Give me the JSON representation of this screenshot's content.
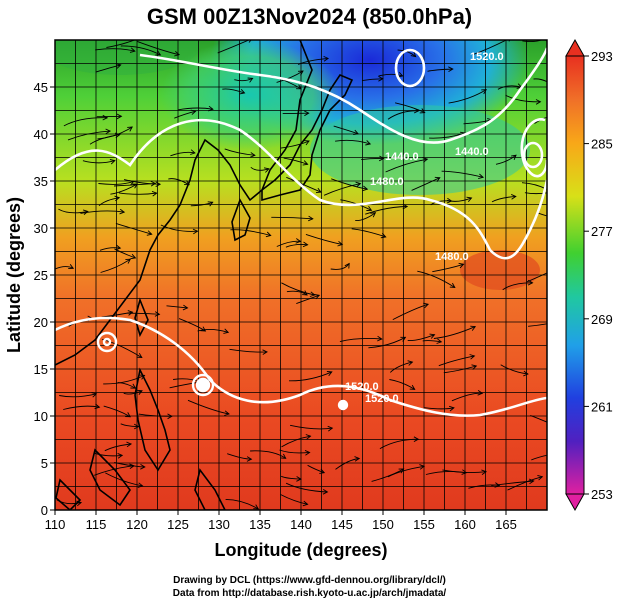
{
  "title": "GSM 00Z13Nov2024 (850.0hPa)",
  "map": {
    "region": "Western North Pacific / East Asia",
    "field": "temperature shading with streamlines and geopotential height contours",
    "x_label": "Longitude (degrees)",
    "y_label": "Latitude  (degrees)",
    "x_ticks": [
      "110",
      "115",
      "120",
      "125",
      "130",
      "135",
      "140",
      "145",
      "150",
      "155",
      "160",
      "165"
    ],
    "y_ticks": [
      "0",
      "5",
      "10",
      "15",
      "20",
      "25",
      "30",
      "35",
      "40",
      "45"
    ],
    "x_range": [
      110,
      170
    ],
    "y_range": [
      0,
      50
    ],
    "contour_labels": [
      "1440.0",
      "1480.0",
      "1440.0",
      "1480.0",
      "1520.0",
      "1520.0",
      "1520.0"
    ],
    "colorbar": {
      "ticks": [
        "293",
        "285",
        "277",
        "269",
        "261",
        "253"
      ],
      "range": [
        253,
        293
      ]
    }
  },
  "credits": {
    "line1": "Drawing by DCL (https://www.gfd-dennou.org/library/dcl/)",
    "line2": "Data from http://database.rish.kyoto-u.ac.jp/arch/jmadata/"
  }
}
